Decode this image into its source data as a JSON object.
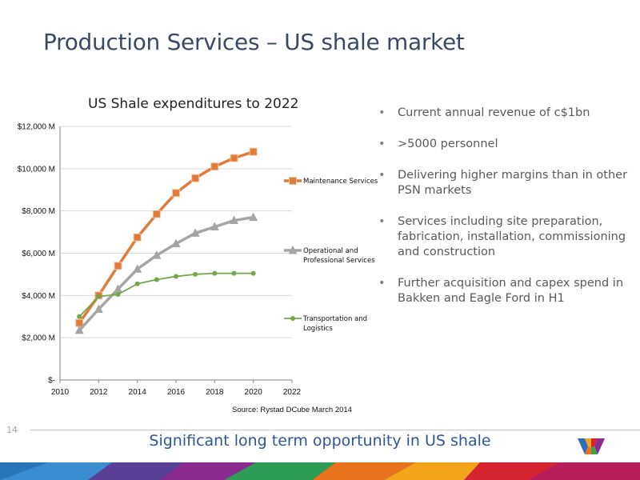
{
  "slide": {
    "title": "Production Services – US shale market",
    "page_number": "14",
    "tagline": "Significant long term opportunity in US shale",
    "source": "Source: Rystad DCube March 2014"
  },
  "bullets": [
    "Current annual revenue of c$1bn",
    ">5000 personnel",
    "Delivering higher margins than in other PSN markets",
    "Services including site preparation, fabrication, installation, commissioning and construction",
    "Further acquisition and capex spend in Bakken and Eagle Ford in H1"
  ],
  "chart_data": {
    "type": "line",
    "title": "US Shale expenditures to 2022",
    "xlim": [
      2010,
      2022
    ],
    "ylim": [
      0,
      12000
    ],
    "x_ticks": [
      "2010",
      "2012",
      "2014",
      "2016",
      "2018",
      "2020",
      "2022"
    ],
    "y_ticks": [
      "$-",
      "$2,000 M",
      "$4,000 M",
      "$6,000 M",
      "$8,000 M",
      "$10,000 M",
      "$12,000 M"
    ],
    "grid": "horizontal",
    "legend_position": "right",
    "x": [
      2011,
      2012,
      2013,
      2014,
      2015,
      2016,
      2017,
      2018,
      2019,
      2020
    ],
    "series": [
      {
        "name": "Maintenance Services",
        "color": "#e07b39",
        "marker": "square",
        "values": [
          2700,
          4000,
          5400,
          6750,
          7850,
          8850,
          9550,
          10100,
          10500,
          10800
        ]
      },
      {
        "name": "Operational and Professional Services",
        "color": "#a5a5a5",
        "marker": "triangle",
        "values": [
          2350,
          3350,
          4300,
          5250,
          5900,
          6450,
          6950,
          7250,
          7550,
          7700
        ]
      },
      {
        "name": "Transportation and Logistics",
        "color": "#70a84a",
        "marker": "circle",
        "values": [
          3000,
          3950,
          4050,
          4550,
          4750,
          4900,
          5000,
          5050,
          5050,
          5050
        ]
      }
    ]
  },
  "colors": {
    "title": "#3a4a66",
    "tagline": "#2f5597"
  },
  "icons": {
    "logo": "wood-group-w-logo"
  }
}
